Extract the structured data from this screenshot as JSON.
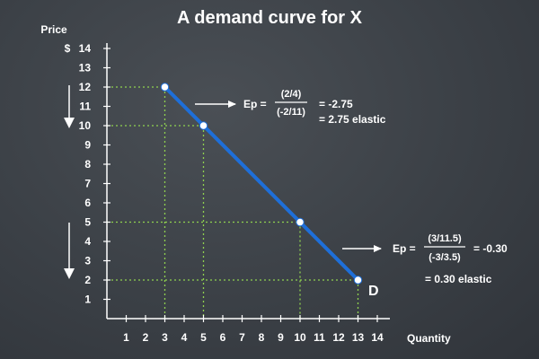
{
  "chart_data": {
    "type": "line",
    "title": "A demand curve for X",
    "ylabel": "Price",
    "yunit": "$",
    "xlabel": "Quantity",
    "xlim": [
      0,
      14
    ],
    "ylim": [
      0,
      14
    ],
    "xticks": [
      1,
      2,
      3,
      4,
      5,
      6,
      7,
      8,
      9,
      10,
      11,
      12,
      13,
      14
    ],
    "yticks": [
      1,
      2,
      3,
      4,
      5,
      6,
      7,
      8,
      9,
      10,
      11,
      12,
      13,
      14
    ],
    "grid": false,
    "series": [
      {
        "name": "D",
        "color": "#1e6fd9",
        "points": [
          [
            3,
            12
          ],
          [
            13,
            2
          ]
        ]
      }
    ],
    "marked_points": [
      [
        3,
        12
      ],
      [
        5,
        10
      ],
      [
        10,
        5
      ],
      [
        13,
        2
      ]
    ],
    "guide_color": "#8fd14f",
    "annotations": [
      {
        "id": "upper",
        "prefix": "Ep =",
        "numerator": "(2/4)",
        "denominator": "(-2/11)",
        "result": "= -2.75",
        "note": "= 2.75 elastic"
      },
      {
        "id": "lower",
        "prefix": "Ep =",
        "numerator": "(3/11.5)",
        "denominator": "(-3/3.5)",
        "result": "= -0.30",
        "note": "= 0.30 elastic"
      }
    ]
  }
}
